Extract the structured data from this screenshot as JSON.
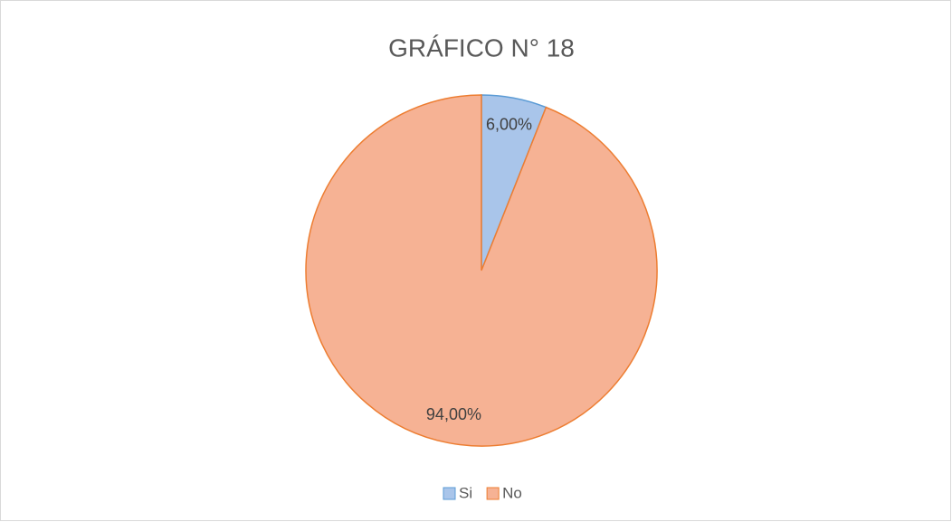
{
  "chart_data": {
    "type": "pie",
    "title": "GRÁFICO N° 18",
    "categories": [
      "Si",
      "No"
    ],
    "values": [
      6,
      94
    ],
    "value_labels": [
      "6,00%",
      "94,00%"
    ],
    "colors": [
      "#a9c5ea",
      "#f6b294"
    ],
    "edge_colors": [
      "#5b9bd5",
      "#ed7d31"
    ],
    "legend": "bottom"
  }
}
